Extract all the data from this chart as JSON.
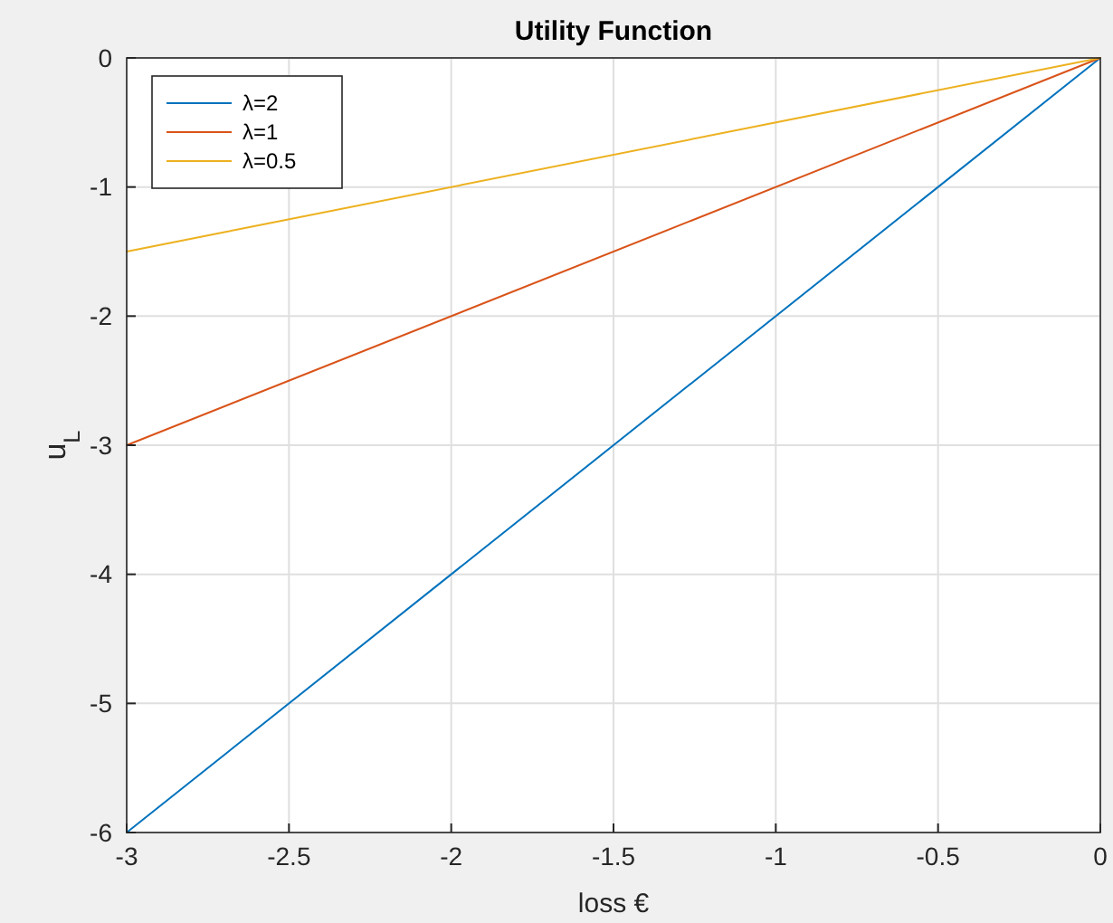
{
  "chart_data": {
    "type": "line",
    "title": "Utility Function",
    "xlabel": "loss €",
    "ylabel": "u$_{L}$",
    "x": [
      -3,
      0
    ],
    "series": [
      {
        "name": "λ=2",
        "color": "#0072bd",
        "values": [
          -6,
          0
        ]
      },
      {
        "name": "λ=1",
        "color": "#d95319",
        "values": [
          -3,
          0
        ]
      },
      {
        "name": "λ=0.5",
        "color": "#edb120",
        "values": [
          -1.5,
          0
        ]
      }
    ],
    "xlim": [
      -3,
      0
    ],
    "ylim": [
      -6,
      0
    ],
    "xticks": [
      -3,
      -2.5,
      -2,
      -1.5,
      -1,
      -0.5,
      0
    ],
    "yticks": [
      -6,
      -5,
      -4,
      -3,
      -2,
      -1,
      0
    ],
    "grid": true,
    "legend": "top left",
    "marker": "none",
    "line_style": "solid"
  }
}
